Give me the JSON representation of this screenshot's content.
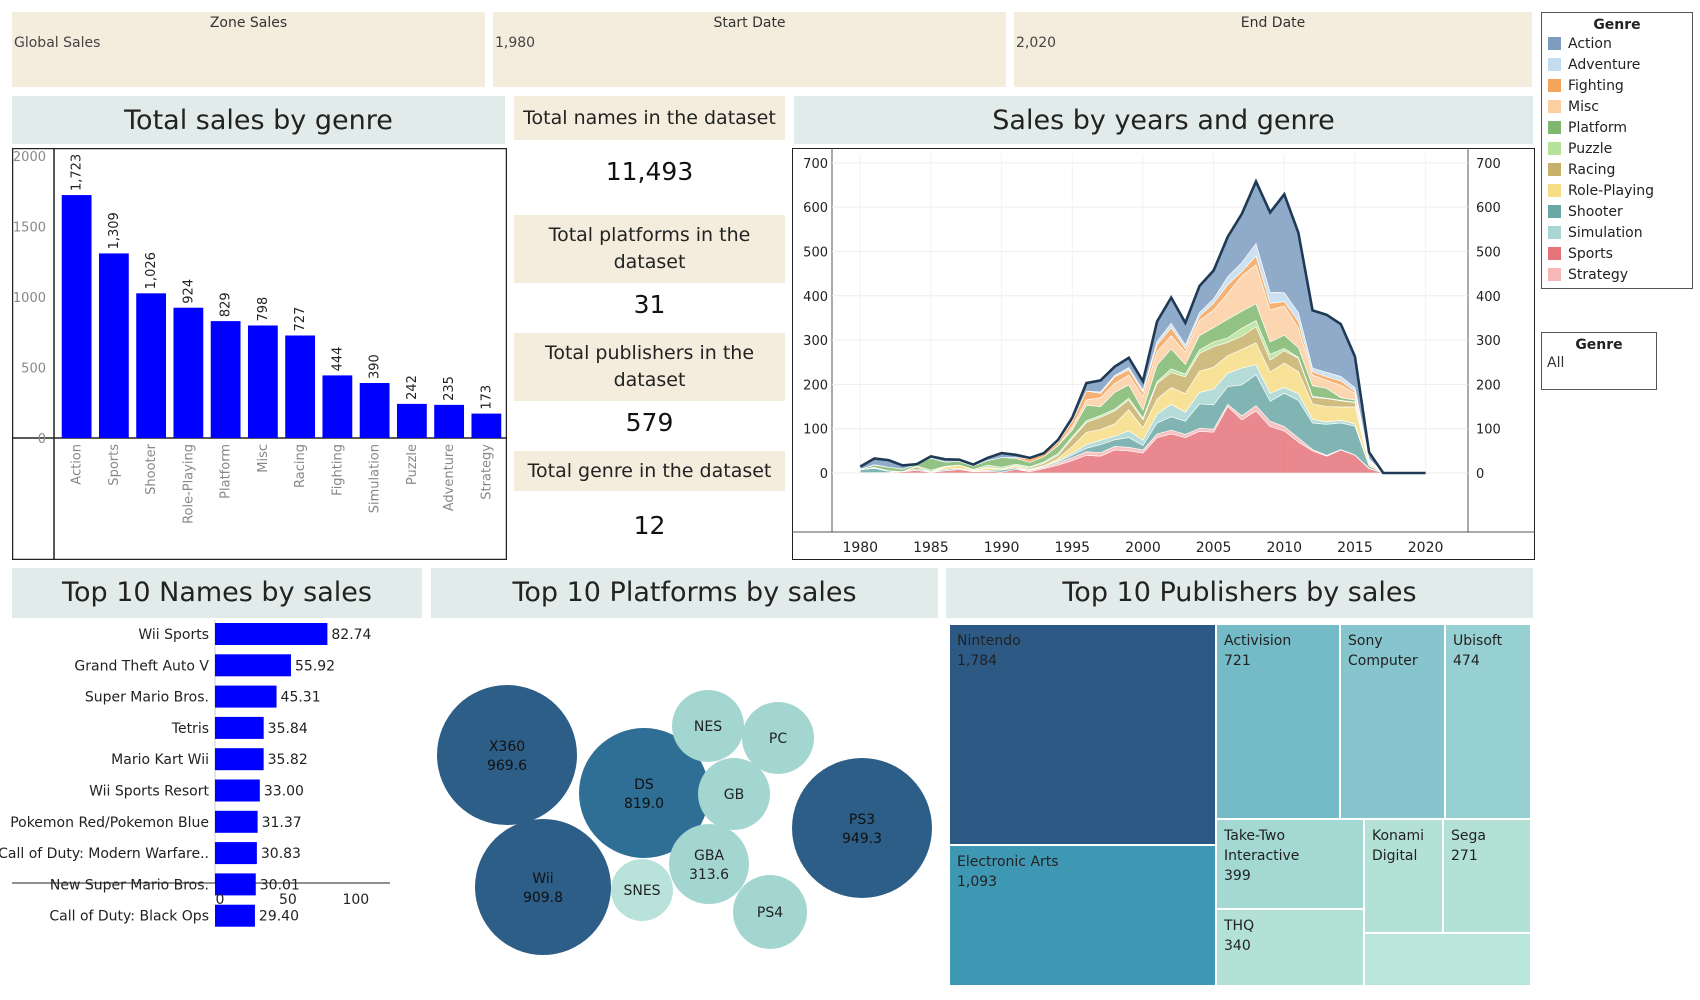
{
  "filters": {
    "zone": {
      "label": "Zone Sales",
      "value": "Global Sales"
    },
    "start": {
      "label": "Start Date",
      "value": "1,980"
    },
    "end": {
      "label": "End Date",
      "value": "2,020"
    }
  },
  "legend": {
    "title": "Genre",
    "items": [
      {
        "label": "Action",
        "color": "#7d9cc0"
      },
      {
        "label": "Adventure",
        "color": "#c3dcef"
      },
      {
        "label": "Fighting",
        "color": "#f5a45c"
      },
      {
        "label": "Misc",
        "color": "#fbcfa2"
      },
      {
        "label": "Platform",
        "color": "#7fb76f"
      },
      {
        "label": "Puzzle",
        "color": "#b7e29b"
      },
      {
        "label": "Racing",
        "color": "#c7b06a"
      },
      {
        "label": "Role-Playing",
        "color": "#f7dd86"
      },
      {
        "label": "Shooter",
        "color": "#6aa8a6"
      },
      {
        "label": "Simulation",
        "color": "#a9d6d4"
      },
      {
        "label": "Sports",
        "color": "#e5737a"
      },
      {
        "label": "Strategy",
        "color": "#f7b7b7"
      }
    ]
  },
  "genre_filter": {
    "title": "Genre",
    "value": "All"
  },
  "titles": {
    "genre_sales": "Total sales by genre",
    "years_genre": "Sales by years and genre",
    "top_names": "Top 10 Names by sales",
    "top_platforms": "Top 10 Platforms by sales",
    "top_publishers": "Top 10 Publishers by sales"
  },
  "kpis": [
    {
      "label": "Total names in the dataset",
      "value": "11,493"
    },
    {
      "label": "Total platforms in the dataset",
      "value": "31"
    },
    {
      "label": "Total publishers in the dataset",
      "value": "579"
    },
    {
      "label": "Total genre in the dataset",
      "value": "12"
    }
  ],
  "colors": {
    "bar": "#0000ff",
    "panel_band": "#e1ecea",
    "filter_bg": "#f4eddd"
  },
  "chart_data": [
    {
      "type": "bar",
      "title": "Total sales by genre",
      "categories": [
        "Action",
        "Sports",
        "Shooter",
        "Role-Playing",
        "Platform",
        "Misc",
        "Racing",
        "Fighting",
        "Simulation",
        "Puzzle",
        "Adventure",
        "Strategy"
      ],
      "values": [
        1723,
        1309,
        1026,
        924,
        829,
        798,
        727,
        444,
        390,
        242,
        235,
        173
      ],
      "labels": [
        "1,723",
        "1,309",
        "1,026",
        "924",
        "829",
        "798",
        "727",
        "444",
        "390",
        "242",
        "235",
        "173"
      ],
      "yticks": [
        "2000",
        "1500",
        "1000",
        "500",
        "0"
      ],
      "ylim": [
        0,
        2000
      ]
    },
    {
      "type": "area",
      "title": "Sales by years and genre",
      "stacked": true,
      "xticks": [
        "1980",
        "1985",
        "1990",
        "1995",
        "2000",
        "2005",
        "2010",
        "2015",
        "2020"
      ],
      "yticks": [
        "700",
        "600",
        "500",
        "400",
        "300",
        "200",
        "100",
        "0"
      ],
      "xlim": [
        1978,
        2023
      ],
      "ylim": [
        0,
        720
      ],
      "x": [
        1980,
        1981,
        1982,
        1983,
        1984,
        1985,
        1986,
        1987,
        1988,
        1989,
        1990,
        1991,
        1992,
        1993,
        1994,
        1995,
        1996,
        1997,
        1998,
        1999,
        2000,
        2001,
        2002,
        2003,
        2004,
        2005,
        2006,
        2007,
        2008,
        2009,
        2010,
        2011,
        2012,
        2013,
        2014,
        2015,
        2016,
        2017,
        2018,
        2019,
        2020
      ],
      "series": [
        {
          "name": "Sports",
          "values": [
            0.5,
            0.8,
            1.1,
            3,
            6,
            1.5,
            5,
            8,
            3,
            4,
            2,
            8,
            3,
            10,
            18,
            28,
            40,
            38,
            52,
            50,
            45,
            80,
            88,
            80,
            94,
            92,
            150,
            120,
            140,
            105,
            95,
            70,
            50,
            38,
            52,
            40,
            10,
            0,
            0,
            0,
            0
          ]
        },
        {
          "name": "Strategy",
          "values": [
            0,
            0,
            0,
            0,
            0,
            0,
            0,
            0,
            0,
            0,
            0,
            0,
            3,
            3,
            5,
            7,
            8,
            8,
            8,
            8,
            7,
            8,
            9,
            7,
            7,
            7,
            5,
            9,
            12,
            12,
            10,
            9,
            3,
            2,
            1,
            1,
            1,
            0,
            0,
            0,
            0
          ]
        },
        {
          "name": "Shooter",
          "values": [
            7,
            10,
            3,
            0,
            3,
            1,
            3,
            2,
            1,
            2,
            5,
            3,
            0,
            2,
            3,
            5,
            8,
            18,
            15,
            22,
            10,
            25,
            30,
            30,
            55,
            55,
            40,
            70,
            70,
            45,
            75,
            85,
            60,
            70,
            60,
            65,
            5,
            0,
            0,
            0,
            0
          ]
        },
        {
          "name": "Simulation",
          "values": [
            0,
            0,
            0,
            0,
            0,
            0,
            0,
            0,
            0,
            0,
            0,
            0,
            0,
            0,
            2,
            5,
            8,
            10,
            8,
            15,
            12,
            20,
            28,
            20,
            26,
            35,
            30,
            38,
            22,
            18,
            13,
            15,
            8,
            5,
            6,
            5,
            1,
            0,
            0,
            0,
            0
          ]
        },
        {
          "name": "Role-Playing",
          "values": [
            0,
            0,
            0,
            0,
            0,
            0,
            5,
            8,
            2,
            5,
            2,
            4,
            2,
            2,
            5,
            15,
            28,
            24,
            28,
            48,
            28,
            34,
            38,
            42,
            48,
            50,
            40,
            42,
            50,
            48,
            55,
            50,
            35,
            35,
            30,
            38,
            5,
            0,
            0,
            0,
            0
          ]
        },
        {
          "name": "Racing",
          "values": [
            0,
            0,
            0,
            0,
            5,
            0,
            2,
            0,
            0,
            2,
            0,
            2,
            3,
            5,
            7,
            18,
            22,
            28,
            29,
            22,
            18,
            35,
            34,
            38,
            40,
            46,
            30,
            30,
            36,
            27,
            28,
            30,
            15,
            18,
            14,
            10,
            2,
            0,
            0,
            0,
            0
          ]
        },
        {
          "name": "Puzzle",
          "values": [
            0,
            2,
            1,
            0,
            2,
            4,
            0,
            0,
            2,
            5,
            4,
            3,
            3,
            3,
            4,
            4,
            4,
            4,
            4,
            4,
            4,
            4,
            8,
            6,
            8,
            11,
            10,
            18,
            14,
            13,
            5,
            2,
            2,
            1,
            1,
            1,
            0,
            0,
            0,
            0,
            0
          ]
        },
        {
          "name": "Platform",
          "values": [
            1,
            5,
            8,
            6,
            4,
            27,
            10,
            8,
            8,
            10,
            22,
            13,
            10,
            12,
            18,
            15,
            35,
            20,
            38,
            30,
            18,
            38,
            45,
            22,
            32,
            32,
            42,
            38,
            38,
            28,
            30,
            22,
            24,
            22,
            6,
            5,
            2,
            0,
            0,
            0,
            0
          ]
        },
        {
          "name": "Misc",
          "values": [
            0,
            0,
            0,
            0,
            0,
            0,
            0,
            0,
            0,
            0,
            0,
            0,
            0,
            0,
            0,
            8,
            12,
            20,
            20,
            22,
            30,
            30,
            30,
            28,
            34,
            40,
            58,
            80,
            88,
            72,
            66,
            44,
            24,
            18,
            28,
            15,
            2,
            0,
            0,
            0,
            0
          ]
        },
        {
          "name": "Fighting",
          "values": [
            0,
            1,
            0,
            0,
            0,
            0,
            0,
            0,
            0,
            0,
            0,
            2,
            8,
            6,
            8,
            12,
            20,
            10,
            15,
            12,
            10,
            15,
            18,
            8,
            10,
            15,
            20,
            10,
            20,
            15,
            10,
            15,
            8,
            8,
            10,
            5,
            2,
            0,
            0,
            0,
            0
          ]
        },
        {
          "name": "Adventure",
          "values": [
            0,
            0,
            0,
            0,
            0,
            0,
            0,
            0,
            0,
            0,
            0,
            0,
            0,
            0,
            0,
            0,
            0,
            3,
            3,
            5,
            5,
            8,
            10,
            8,
            8,
            10,
            18,
            20,
            28,
            25,
            20,
            20,
            8,
            10,
            10,
            8,
            2,
            0,
            0,
            0,
            0
          ]
        },
        {
          "name": "Action",
          "values": [
            6,
            14,
            16,
            8,
            0,
            4,
            6,
            4,
            3,
            6,
            10,
            6,
            2,
            2,
            5,
            8,
            18,
            26,
            20,
            22,
            20,
            45,
            58,
            50,
            60,
            64,
            90,
            110,
            140,
            180,
            222,
            180,
            130,
            130,
            118,
            70,
            15,
            0,
            0,
            0,
            0
          ]
        }
      ]
    },
    {
      "type": "bar",
      "title": "Top 10 Names by sales",
      "orientation": "horizontal",
      "categories": [
        "Wii Sports",
        "Grand Theft Auto V",
        "Super Mario Bros.",
        "Tetris",
        "Mario Kart Wii",
        "Wii Sports Resort",
        "Pokemon Red/Pokemon Blue",
        "Call of Duty: Modern Warfare..",
        "New Super Mario Bros.",
        "Call of Duty: Black Ops"
      ],
      "values": [
        82.74,
        55.92,
        45.31,
        35.84,
        35.82,
        33.0,
        31.37,
        30.83,
        30.01,
        29.4
      ],
      "labels": [
        "82.74",
        "55.92",
        "45.31",
        "35.84",
        "35.82",
        "33.00",
        "31.37",
        "30.83",
        "30.01",
        "29.40"
      ],
      "xticks": [
        "0",
        "50",
        "100"
      ],
      "xlim": [
        0,
        120
      ]
    },
    {
      "type": "bubble",
      "title": "Top 10 Platforms by sales",
      "items": [
        {
          "name": "X360",
          "value": 969.6,
          "label": "969.6",
          "color": "#2d5e87"
        },
        {
          "name": "PS3",
          "value": 949.3,
          "label": "949.3",
          "color": "#2d5e87"
        },
        {
          "name": "Wii",
          "value": 909.8,
          "label": "909.8",
          "color": "#2d5e87"
        },
        {
          "name": "DS",
          "value": 819.0,
          "label": "819.0",
          "color": "#2f6f96"
        },
        {
          "name": "GBA",
          "value": 313.6,
          "label": "313.6",
          "color": "#a3d6d1"
        },
        {
          "name": "NES",
          "value": null,
          "label": "",
          "color": "#a3d6d1"
        },
        {
          "name": "PC",
          "value": null,
          "label": "",
          "color": "#a3d6d1"
        },
        {
          "name": "GB",
          "value": null,
          "label": "",
          "color": "#a3d6d1"
        },
        {
          "name": "SNES",
          "value": null,
          "label": "",
          "color": "#b9e2db"
        },
        {
          "name": "PS4",
          "value": null,
          "label": "",
          "color": "#a3d6d1"
        }
      ]
    },
    {
      "type": "treemap",
      "title": "Top 10 Publishers by sales",
      "items": [
        {
          "name": "Nintendo",
          "value": 1784,
          "label": "1,784",
          "color": "#2d5985"
        },
        {
          "name": "Electronic Arts",
          "value": 1093,
          "label": "1,093",
          "color": "#3f98b3"
        },
        {
          "name": "Activision",
          "value": 721,
          "label": "721",
          "color": "#74bac7"
        },
        {
          "name": "Sony Computer",
          "value": null,
          "label": "",
          "color": "#86c4ce"
        },
        {
          "name": "Ubisoft",
          "value": 474,
          "label": "474",
          "color": "#96d0d3"
        },
        {
          "name": "Take-Two Interactive",
          "value": 399,
          "label": "399",
          "color": "#a3d8d3"
        },
        {
          "name": "Konami Digital",
          "value": null,
          "label": "",
          "color": "#b3e1d6"
        },
        {
          "name": "Sega",
          "value": 271,
          "label": "271",
          "color": "#b3e1d6"
        },
        {
          "name": "THQ",
          "value": 340,
          "label": "340",
          "color": "#b3e1d6"
        },
        {
          "name": "",
          "value": null,
          "label": "",
          "color": "#b9e5da"
        }
      ]
    }
  ]
}
